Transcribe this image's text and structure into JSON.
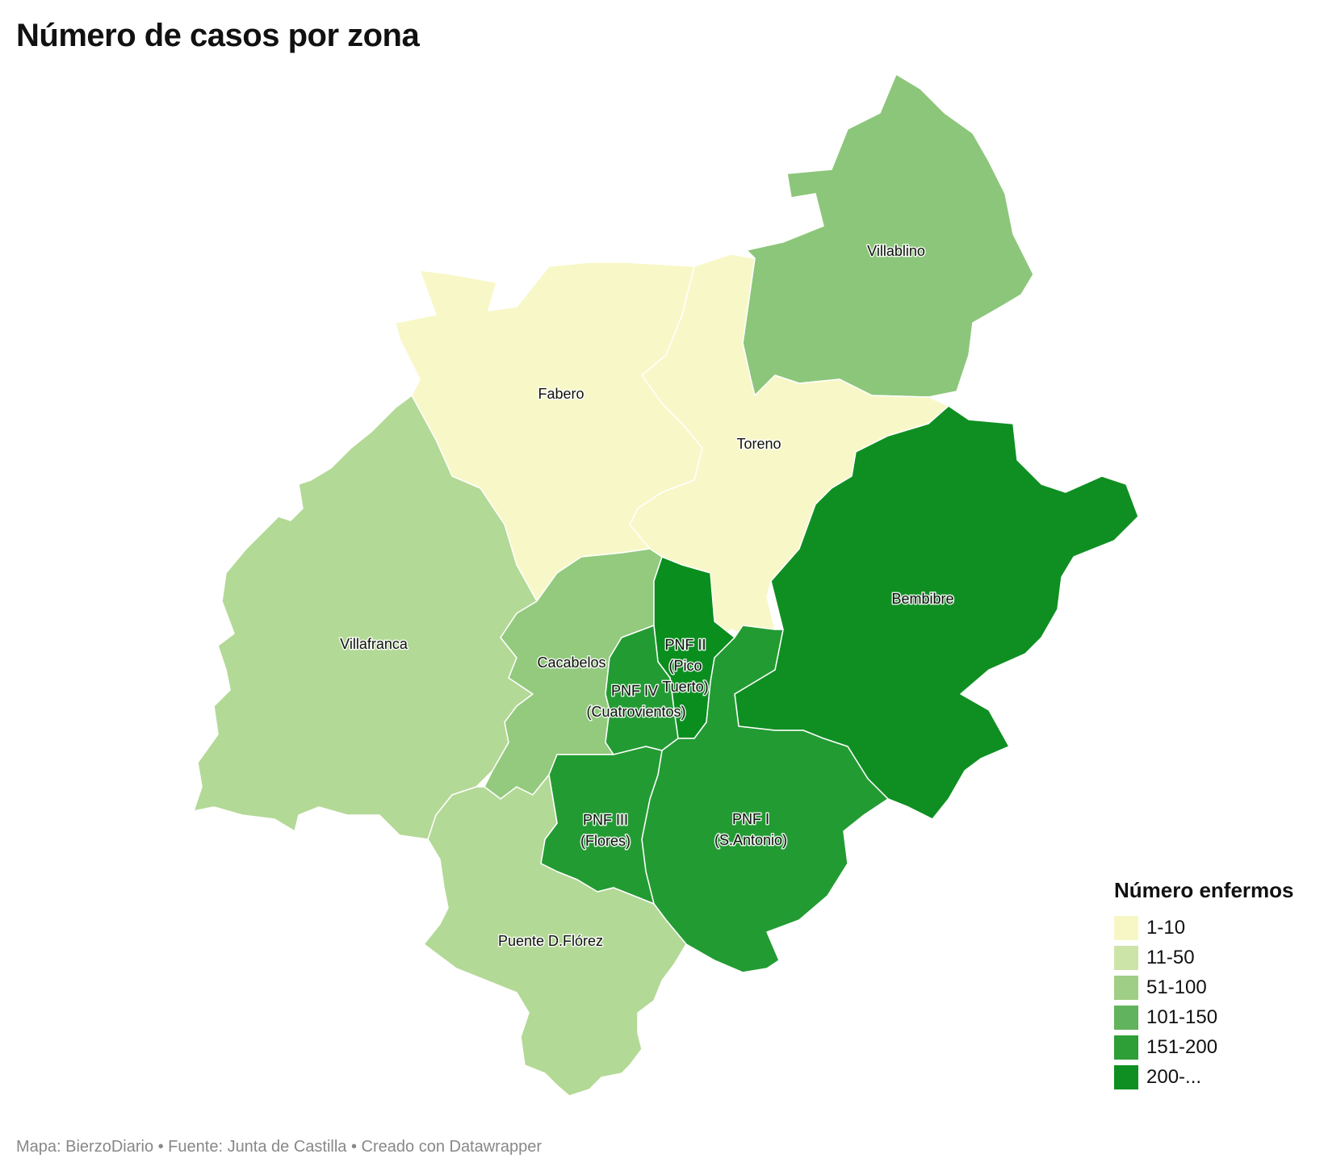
{
  "title": "Número de casos por zona",
  "colors": {
    "1-10": "#f7f7c6",
    "11-50": "#b3d996",
    "51-100": "#8fc77a",
    "101-150": "#62b35d",
    "151-200": "#239b33",
    "200+": "#0f8f22"
  },
  "regions": [
    {
      "name": "Villablino",
      "range": "51-100"
    },
    {
      "name": "Fabero",
      "range": "1-10"
    },
    {
      "name": "Toreno",
      "range": "1-10"
    },
    {
      "name": "Bembibre",
      "range": "200+"
    },
    {
      "name": "Villafranca",
      "range": "11-50"
    },
    {
      "name": "Cacabelos",
      "range": "51-100"
    },
    {
      "name": "PNF II (Pico Tuerto)",
      "range": "200+"
    },
    {
      "name": "PNF IV (Cuatrovientos)",
      "range": "151-200"
    },
    {
      "name": "PNF III (Flores)",
      "range": "151-200"
    },
    {
      "name": "PNF I (S.Antonio)",
      "range": "151-200"
    },
    {
      "name": "Puente D.Flórez",
      "range": "11-50"
    }
  ],
  "labels": {
    "villablino": "Villablino",
    "fabero": "Fabero",
    "toreno": "Toreno",
    "bembibre": "Bembibre",
    "villafranca": "Villafranca",
    "cacabelos": "Cacabelos",
    "pnf2_a": "PNF II",
    "pnf2_b": "(Pico",
    "pnf2_c": "Tuerto)",
    "pnf4_a": "PNF IV",
    "pnf4_b": "(Cuatrovientos)",
    "pnf3_a": "PNF III",
    "pnf3_b": "(Flores)",
    "pnf1_a": "PNF I",
    "pnf1_b": "(S.Antonio)",
    "puente": "Puente D.Flórez"
  },
  "legend": {
    "title": "Número enfermos",
    "items": [
      {
        "label": "1-10",
        "color": "#f7f7c6"
      },
      {
        "label": "11-50",
        "color": "#cde4a9"
      },
      {
        "label": "51-100",
        "color": "#9fce86"
      },
      {
        "label": "101-150",
        "color": "#62b35d"
      },
      {
        "label": "151-200",
        "color": "#2e9e36"
      },
      {
        "label": "200-...",
        "color": "#0f8f22"
      }
    ]
  },
  "footer": "Mapa: BierzoDiario • Fuente: Junta de Castilla • Creado con Datawrapper"
}
